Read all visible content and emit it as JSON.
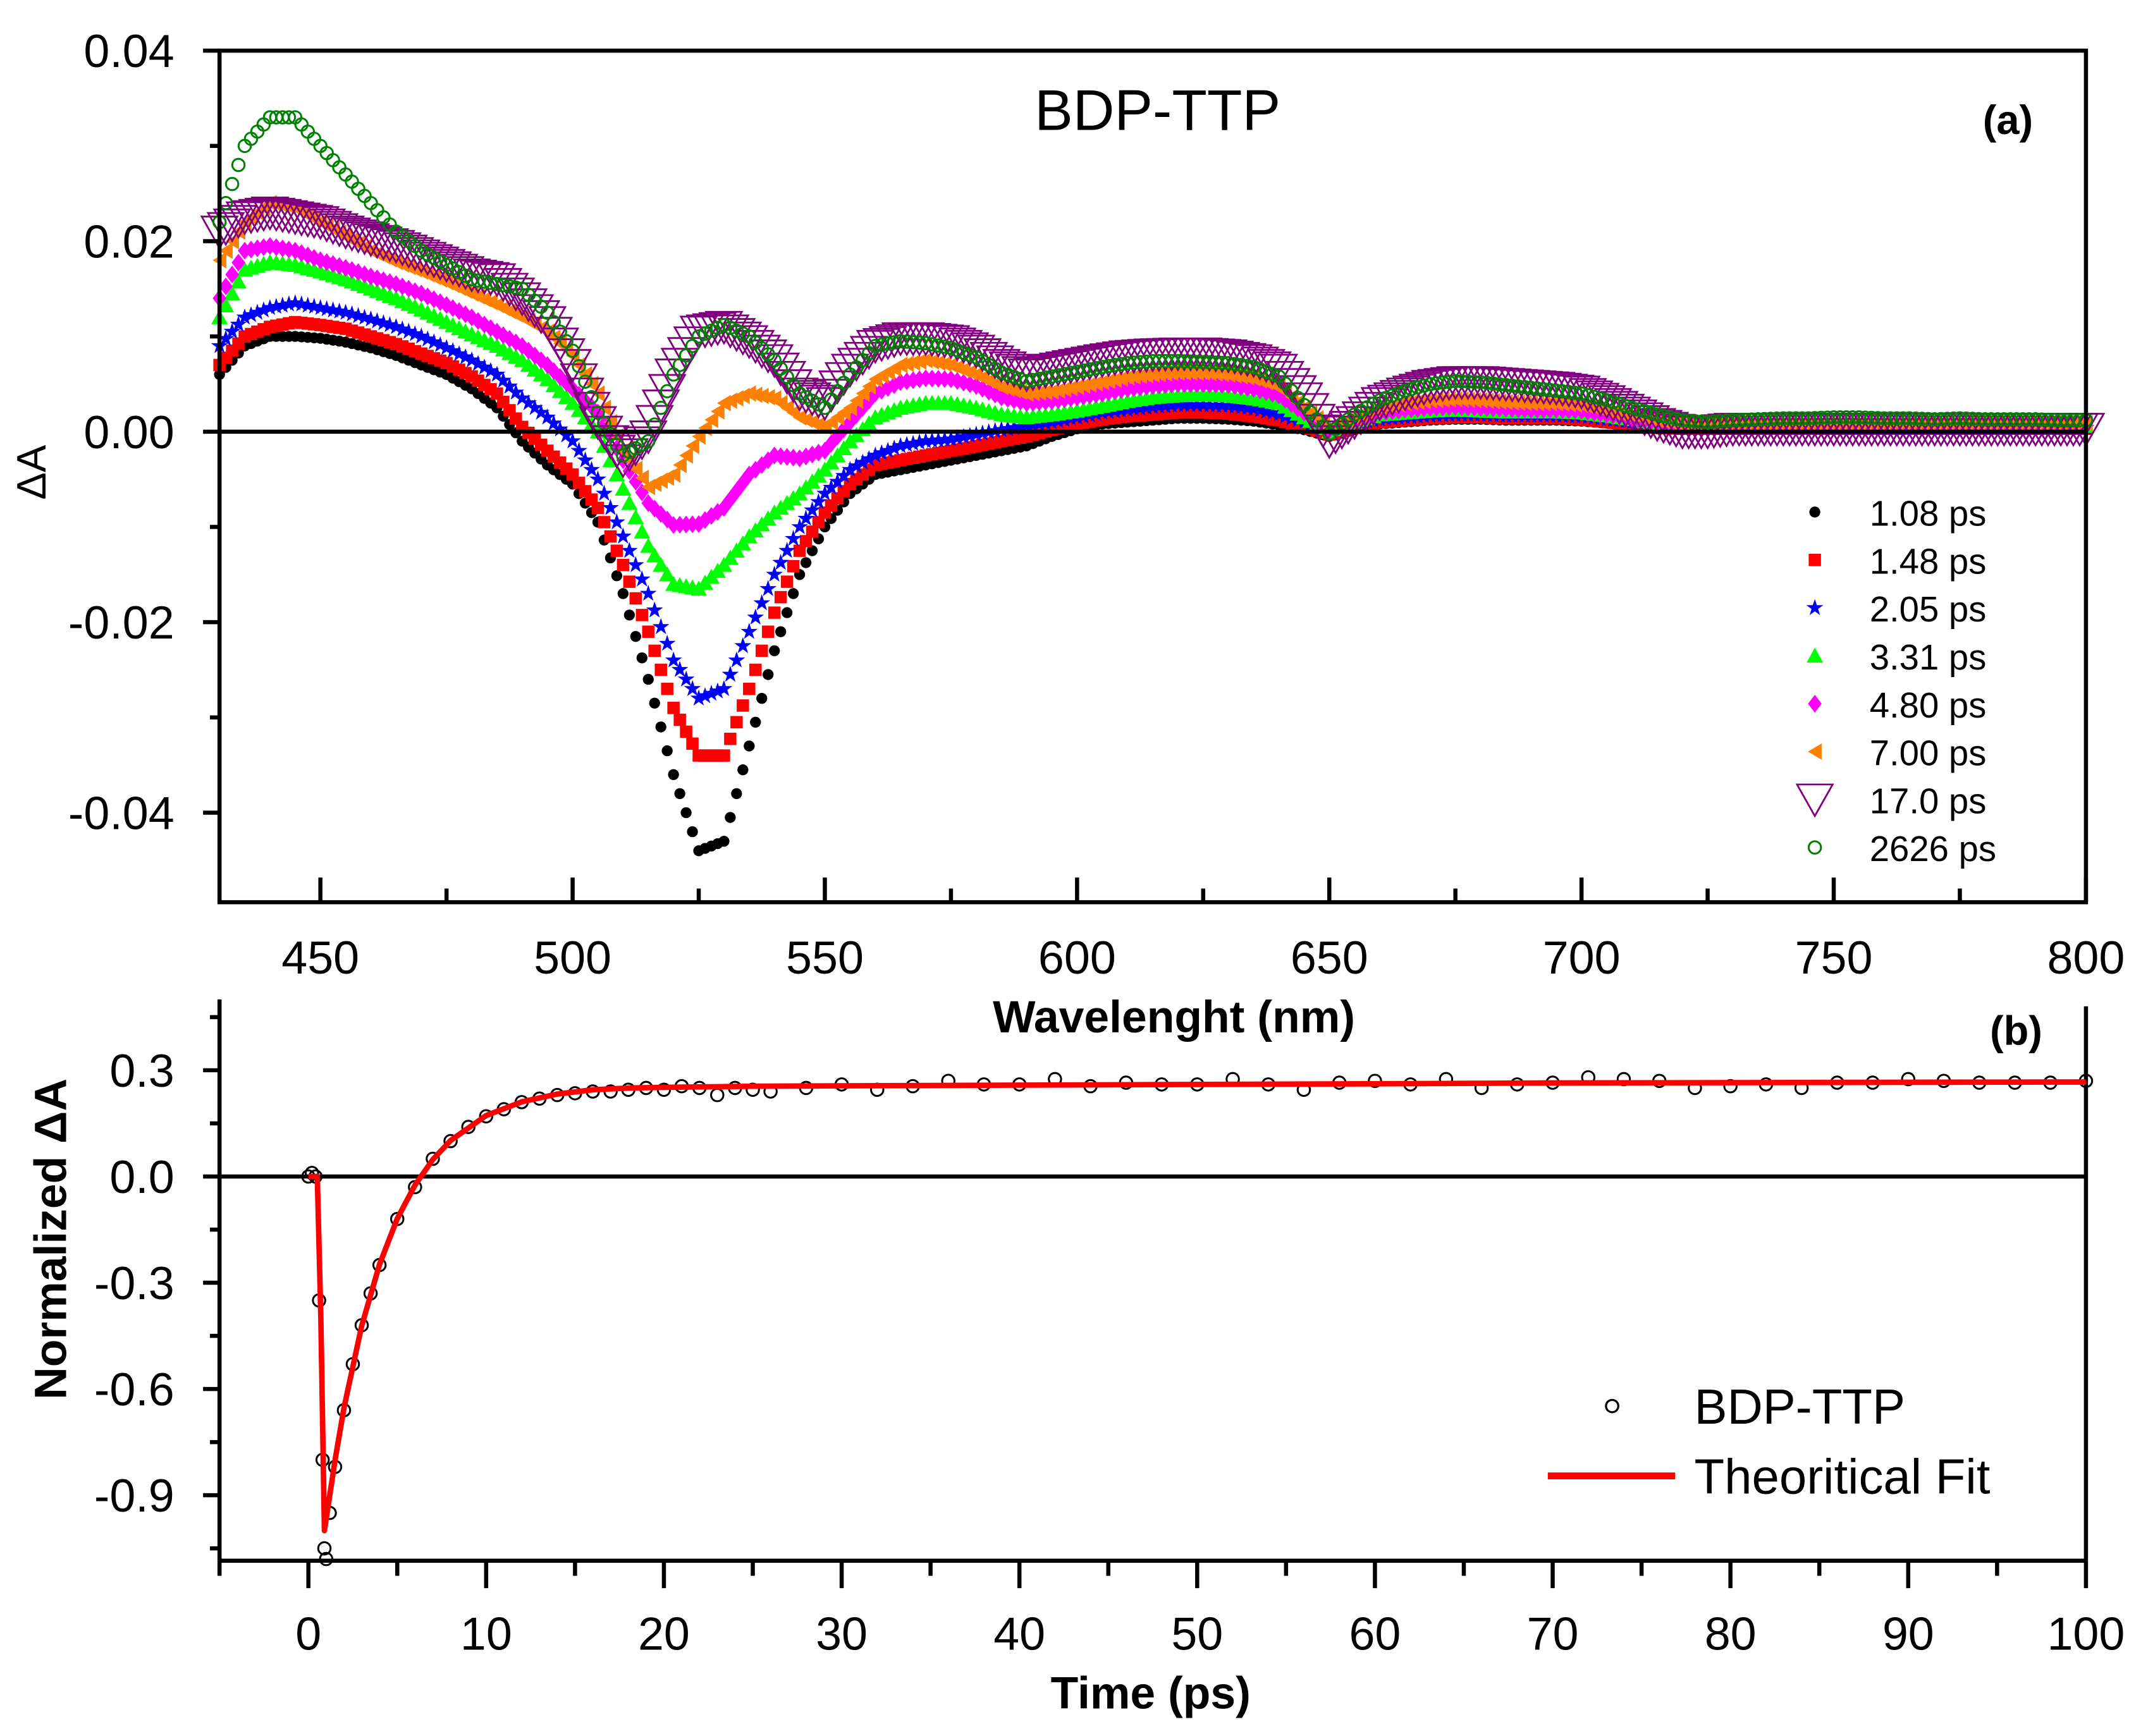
{
  "chart_data": [
    {
      "type": "scatter",
      "panel_label": "(a)",
      "title": "BDP-TTP",
      "xlabel": "Wavelenght (nm)",
      "ylabel": "ΔA",
      "xlim": [
        430,
        800
      ],
      "ylim": [
        -0.0494,
        0.04
      ],
      "xticks": [
        450,
        500,
        550,
        600,
        650,
        700,
        750,
        800
      ],
      "xtick_labels": [
        "450",
        "500",
        "550",
        "600",
        "650",
        "700",
        "750",
        "800"
      ],
      "yticks": [
        0.04,
        0.02,
        0.0,
        -0.02,
        -0.04
      ],
      "ytick_labels": [
        "0.04",
        "0.02",
        "0.00",
        "-0.02",
        "-0.04"
      ],
      "legend_position": "lower-right",
      "x": [
        430,
        435,
        440,
        445,
        450,
        455,
        460,
        465,
        470,
        475,
        480,
        485,
        490,
        495,
        500,
        505,
        510,
        515,
        520,
        525,
        530,
        535,
        540,
        545,
        550,
        555,
        560,
        565,
        570,
        575,
        580,
        585,
        590,
        595,
        600,
        605,
        610,
        615,
        620,
        625,
        630,
        635,
        640,
        645,
        650,
        655,
        660,
        665,
        670,
        675,
        680,
        685,
        690,
        695,
        700,
        705,
        710,
        715,
        720,
        725,
        730,
        735,
        740,
        745,
        750,
        755,
        760,
        765,
        770,
        775,
        780,
        785,
        790,
        795,
        800
      ],
      "series": [
        {
          "name": "1.08 ps",
          "color": "#000000",
          "marker": "circle",
          "values": [
            0.006,
            0.009,
            0.01,
            0.01,
            0.0098,
            0.0094,
            0.0088,
            0.008,
            0.007,
            0.006,
            0.0045,
            0.0025,
            -0.001,
            -0.0035,
            -0.0055,
            -0.0095,
            -0.017,
            -0.026,
            -0.036,
            -0.044,
            -0.043,
            -0.033,
            -0.023,
            -0.015,
            -0.01,
            -0.0065,
            -0.0045,
            -0.004,
            -0.0035,
            -0.003,
            -0.0025,
            -0.002,
            -0.0015,
            -0.0005,
            0.0003,
            0.0008,
            0.001,
            0.0012,
            0.0014,
            0.0014,
            0.0013,
            0.0011,
            0.0007,
            0.0002,
            -0.0005,
            0.0002,
            0.0008,
            0.001,
            0.0012,
            0.0013,
            0.0013,
            0.0012,
            0.0012,
            0.0012,
            0.0011,
            0.0009,
            0.0006,
            0.0003,
            0.0002,
            0.0002,
            0.0002,
            0.0002,
            0.0002,
            0.0002,
            0.0002,
            0.0002,
            0.0002,
            0.0002,
            0.0002,
            0.0002,
            0.0002,
            0.0002,
            0.0002,
            0.0002,
            0.0002
          ]
        },
        {
          "name": "1.48 ps",
          "color": "#ff0000",
          "marker": "square",
          "values": [
            0.007,
            0.01,
            0.011,
            0.0115,
            0.0112,
            0.0108,
            0.01,
            0.0092,
            0.0082,
            0.0072,
            0.0058,
            0.004,
            0.0005,
            -0.002,
            -0.0045,
            -0.008,
            -0.014,
            -0.021,
            -0.029,
            -0.034,
            -0.034,
            -0.027,
            -0.019,
            -0.0125,
            -0.0085,
            -0.0055,
            -0.0035,
            -0.003,
            -0.0025,
            -0.002,
            -0.0015,
            -0.001,
            -0.0005,
            0.0002,
            0.0008,
            0.0013,
            0.0016,
            0.0018,
            0.002,
            0.002,
            0.0019,
            0.0016,
            0.0012,
            0.0005,
            -0.0003,
            0.0004,
            0.001,
            0.0012,
            0.0014,
            0.0015,
            0.0015,
            0.0014,
            0.0014,
            0.0014,
            0.0013,
            0.001,
            0.0007,
            0.0004,
            0.0003,
            0.0003,
            0.0003,
            0.0003,
            0.0003,
            0.0003,
            0.0003,
            0.0003,
            0.0003,
            0.0003,
            0.0003,
            0.0003,
            0.0003,
            0.0003,
            0.0003,
            0.0003,
            0.0003
          ]
        },
        {
          "name": "2.05 ps",
          "color": "#0000ff",
          "marker": "star",
          "values": [
            0.009,
            0.012,
            0.013,
            0.0135,
            0.013,
            0.0125,
            0.0118,
            0.011,
            0.01,
            0.0088,
            0.0075,
            0.006,
            0.0035,
            0.0015,
            -0.001,
            -0.005,
            -0.011,
            -0.017,
            -0.024,
            -0.028,
            -0.027,
            -0.021,
            -0.015,
            -0.01,
            -0.0065,
            -0.004,
            -0.0025,
            -0.0015,
            -0.001,
            -0.0008,
            -0.0003,
            0.0002,
            0.0006,
            0.001,
            0.0015,
            0.002,
            0.0023,
            0.0026,
            0.0028,
            0.0028,
            0.0027,
            0.0024,
            0.0018,
            0.001,
            0.0,
            0.0008,
            0.0013,
            0.0015,
            0.0017,
            0.0018,
            0.0018,
            0.0017,
            0.0017,
            0.0017,
            0.0016,
            0.0013,
            0.001,
            0.0006,
            0.0004,
            0.0004,
            0.0004,
            0.0004,
            0.0004,
            0.0004,
            0.0004,
            0.0004,
            0.0004,
            0.0004,
            0.0004,
            0.0004,
            0.0004,
            0.0004,
            0.0004,
            0.0004,
            0.0004
          ]
        },
        {
          "name": "3.31 ps",
          "color": "#00ff00",
          "marker": "triangle-up",
          "values": [
            0.012,
            0.017,
            0.0178,
            0.0175,
            0.0168,
            0.016,
            0.015,
            0.014,
            0.0128,
            0.0115,
            0.0102,
            0.009,
            0.0075,
            0.0055,
            0.003,
            0.0,
            -0.006,
            -0.012,
            -0.016,
            -0.0165,
            -0.014,
            -0.011,
            -0.0085,
            -0.0065,
            -0.004,
            -0.001,
            0.0015,
            0.0025,
            0.003,
            0.003,
            0.0025,
            0.0018,
            0.0015,
            0.0018,
            0.0022,
            0.0027,
            0.0032,
            0.0036,
            0.0038,
            0.0039,
            0.0038,
            0.0035,
            0.003,
            0.0015,
            0.0,
            0.001,
            0.0018,
            0.002,
            0.0022,
            0.0023,
            0.0022,
            0.0021,
            0.0021,
            0.0021,
            0.002,
            0.0017,
            0.0013,
            0.0009,
            0.0006,
            0.0006,
            0.0006,
            0.0006,
            0.0006,
            0.0006,
            0.0006,
            0.0006,
            0.0006,
            0.0006,
            0.0006,
            0.0006,
            0.0006,
            0.0006,
            0.0006,
            0.0006,
            0.0006
          ]
        },
        {
          "name": "4.80 ps",
          "color": "#ff00ff",
          "marker": "diamond",
          "values": [
            0.014,
            0.019,
            0.0195,
            0.019,
            0.018,
            0.0172,
            0.0163,
            0.0155,
            0.0145,
            0.0133,
            0.012,
            0.0105,
            0.009,
            0.007,
            0.0045,
            0.002,
            -0.003,
            -0.0075,
            -0.0098,
            -0.0097,
            -0.008,
            -0.0045,
            -0.0025,
            -0.0028,
            -0.002,
            0.001,
            0.004,
            0.0052,
            0.0056,
            0.0055,
            0.0048,
            0.0036,
            0.003,
            0.0032,
            0.0036,
            0.004,
            0.0045,
            0.0048,
            0.005,
            0.005,
            0.0049,
            0.0045,
            0.0038,
            0.002,
            0.0002,
            0.0012,
            0.002,
            0.0023,
            0.0025,
            0.0026,
            0.0025,
            0.0024,
            0.0023,
            0.0023,
            0.0022,
            0.0018,
            0.0014,
            0.001,
            0.0007,
            0.0007,
            0.0007,
            0.0007,
            0.0007,
            0.0007,
            0.0007,
            0.0007,
            0.0007,
            0.0007,
            0.0007,
            0.0007,
            0.0007,
            0.0007,
            0.0007,
            0.0007,
            0.0007
          ]
        },
        {
          "name": "7.00 ps",
          "color": "#ff8000",
          "marker": "triangle-left",
          "values": [
            0.018,
            0.022,
            0.024,
            0.0235,
            0.022,
            0.0205,
            0.019,
            0.0178,
            0.0168,
            0.0157,
            0.0145,
            0.0133,
            0.012,
            0.0105,
            0.008,
            0.004,
            -0.002,
            -0.0058,
            -0.0045,
            -0.0005,
            0.003,
            0.004,
            0.0035,
            0.0015,
            0.0005,
            0.0025,
            0.0055,
            0.007,
            0.0075,
            0.007,
            0.006,
            0.0047,
            0.004,
            0.0042,
            0.0047,
            0.0052,
            0.0057,
            0.006,
            0.0062,
            0.0062,
            0.006,
            0.0056,
            0.0048,
            0.0025,
            0.0003,
            0.0015,
            0.0025,
            0.003,
            0.0033,
            0.0034,
            0.0033,
            0.0031,
            0.003,
            0.003,
            0.0028,
            0.0022,
            0.0017,
            0.0012,
            0.0009,
            0.0009,
            0.0009,
            0.0009,
            0.0009,
            0.0009,
            0.0009,
            0.0009,
            0.0009,
            0.0009,
            0.0009,
            0.0009,
            0.0009,
            0.0009,
            0.0009,
            0.0009,
            0.0009
          ]
        },
        {
          "name": "17.0 ps",
          "color": "#800080",
          "marker": "triangle-down-open",
          "values": [
            0.021,
            0.0225,
            0.023,
            0.0225,
            0.022,
            0.021,
            0.0202,
            0.0195,
            0.0185,
            0.0175,
            0.0165,
            0.016,
            0.014,
            0.0115,
            0.007,
            0.001,
            -0.003,
            -0.0005,
            0.006,
            0.0105,
            0.011,
            0.0095,
            0.0075,
            0.004,
            0.003,
            0.0065,
            0.009,
            0.0098,
            0.0098,
            0.0095,
            0.0085,
            0.007,
            0.006,
            0.0065,
            0.007,
            0.0075,
            0.0079,
            0.0081,
            0.0082,
            0.0082,
            0.008,
            0.0075,
            0.0065,
            0.0035,
            -0.001,
            0.001,
            0.003,
            0.004,
            0.0048,
            0.0052,
            0.0052,
            0.005,
            0.0048,
            0.0046,
            0.0042,
            0.0032,
            0.002,
            0.0008,
            0.0,
            0.0,
            0.0003,
            0.0003,
            0.0003,
            0.0003,
            0.0003,
            0.0003,
            0.0003,
            0.0003,
            0.0003,
            0.0003,
            0.0003,
            0.0003,
            0.0003,
            0.0003,
            0.0003
          ]
        },
        {
          "name": "2626 ps",
          "color": "#008000",
          "marker": "circle-open",
          "values": [
            0.022,
            0.03,
            0.033,
            0.033,
            0.03,
            0.027,
            0.024,
            0.021,
            0.019,
            0.0175,
            0.016,
            0.0155,
            0.015,
            0.0125,
            0.0085,
            0.002,
            -0.0025,
            -0.001,
            0.006,
            0.01,
            0.0112,
            0.01,
            0.0075,
            0.004,
            0.0025,
            0.006,
            0.009,
            0.0095,
            0.0093,
            0.0088,
            0.0078,
            0.0062,
            0.0053,
            0.0058,
            0.0063,
            0.0068,
            0.0072,
            0.0074,
            0.0074,
            0.0073,
            0.0072,
            0.0068,
            0.0058,
            0.0028,
            -0.0002,
            0.0018,
            0.0033,
            0.0043,
            0.005,
            0.0053,
            0.0052,
            0.0049,
            0.0046,
            0.0043,
            0.004,
            0.0033,
            0.0025,
            0.0018,
            0.0012,
            0.001,
            0.0012,
            0.0013,
            0.0014,
            0.0014,
            0.0015,
            0.0015,
            0.0014,
            0.0014,
            0.0013,
            0.0014,
            0.0013,
            0.0013,
            0.0013,
            0.0012,
            0.0012
          ]
        }
      ]
    },
    {
      "type": "scatter",
      "panel_label": "(b)",
      "xlabel": "Time (ps)",
      "ylabel": "Normalized ΔA",
      "xlim": [
        -5,
        100
      ],
      "ylim": [
        -1.085,
        0.5
      ],
      "xticks": [
        0,
        10,
        20,
        30,
        40,
        50,
        60,
        70,
        80,
        90,
        100
      ],
      "xtick_labels": [
        "0",
        "10",
        "20",
        "30",
        "40",
        "50",
        "60",
        "70",
        "80",
        "90",
        "100"
      ],
      "yticks": [
        0.3,
        0.0,
        -0.3,
        -0.6,
        -0.9
      ],
      "ytick_labels": [
        "0.3",
        "0.0",
        "-0.3",
        "-0.6",
        "-0.9"
      ],
      "legend_position": "lower-right",
      "data_series": {
        "name": "BDP-TTP",
        "color": "#000000",
        "marker": "circle-open",
        "x": [
          0,
          0.2,
          0.4,
          0.6,
          0.8,
          0.9,
          1.0,
          1.2,
          1.5,
          2,
          2.5,
          3,
          3.5,
          4,
          5,
          6,
          7,
          8,
          9,
          10,
          11,
          12,
          13,
          14,
          15,
          16,
          17,
          18,
          19,
          20,
          21,
          22,
          23,
          24,
          25,
          26,
          28,
          30,
          32,
          34,
          36,
          38,
          40,
          42,
          44,
          46,
          48,
          50,
          52,
          54,
          56,
          58,
          60,
          62,
          64,
          66,
          68,
          70,
          72,
          74,
          76,
          78,
          80,
          82,
          84,
          86,
          88,
          90,
          92,
          94,
          96,
          98,
          100
        ],
        "y": [
          0.0,
          0.01,
          0.0,
          -0.35,
          -0.8,
          -1.05,
          -1.08,
          -0.95,
          -0.82,
          -0.66,
          -0.53,
          -0.42,
          -0.33,
          -0.25,
          -0.12,
          -0.03,
          0.05,
          0.1,
          0.14,
          0.17,
          0.19,
          0.21,
          0.22,
          0.23,
          0.235,
          0.24,
          0.24,
          0.245,
          0.25,
          0.245,
          0.255,
          0.25,
          0.23,
          0.25,
          0.245,
          0.24,
          0.25,
          0.26,
          0.245,
          0.255,
          0.27,
          0.26,
          0.26,
          0.275,
          0.255,
          0.265,
          0.26,
          0.26,
          0.275,
          0.26,
          0.245,
          0.265,
          0.27,
          0.26,
          0.275,
          0.25,
          0.26,
          0.265,
          0.28,
          0.275,
          0.27,
          0.25,
          0.255,
          0.26,
          0.25,
          0.265,
          0.265,
          0.275,
          0.27,
          0.265,
          0.265,
          0.265,
          0.27
        ]
      },
      "fit_series": {
        "name": "Theoritical Fit",
        "color": "#ff0000",
        "x": [
          0,
          0.5,
          0.7,
          0.9,
          1.5,
          2,
          3,
          4,
          5,
          6,
          7,
          8,
          10,
          12,
          14,
          16,
          18,
          20,
          25,
          30,
          40,
          50,
          60,
          70,
          80,
          90,
          100
        ],
        "y": [
          0.0,
          0.0,
          -0.4,
          -1.0,
          -0.8,
          -0.653,
          -0.422,
          -0.249,
          -0.119,
          -0.024,
          0.048,
          0.102,
          0.172,
          0.211,
          0.233,
          0.245,
          0.25,
          0.252,
          0.255,
          0.256,
          0.258,
          0.26,
          0.262,
          0.264,
          0.265,
          0.266,
          0.267
        ]
      }
    }
  ]
}
